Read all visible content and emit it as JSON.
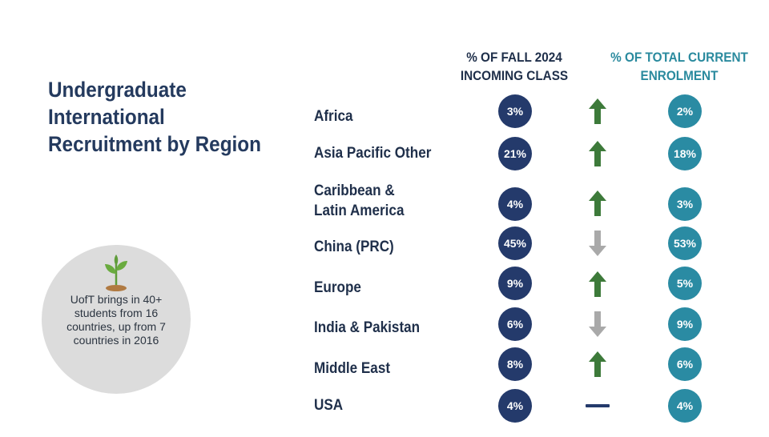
{
  "title": "Undergraduate International Recruitment by Region",
  "headers": {
    "fall_line1": "% OF FALL 2024",
    "fall_line2": "INCOMING CLASS",
    "total_line1": "% OF TOTAL CURRENT",
    "total_line2": "ENROLMENT"
  },
  "rows": [
    {
      "region_line1": "Africa",
      "region_line2": "",
      "fall": "3%",
      "trend": "up",
      "total": "2%"
    },
    {
      "region_line1": "Asia Pacific Other",
      "region_line2": "",
      "fall": "21%",
      "trend": "up",
      "total": "18%"
    },
    {
      "region_line1": "Caribbean &",
      "region_line2": "Latin America",
      "fall": "4%",
      "trend": "up",
      "total": "3%"
    },
    {
      "region_line1": "China (PRC)",
      "region_line2": "",
      "fall": "45%",
      "trend": "down",
      "total": "53%"
    },
    {
      "region_line1": "Europe",
      "region_line2": "",
      "fall": "9%",
      "trend": "up",
      "total": "5%"
    },
    {
      "region_line1": "India & Pakistan",
      "region_line2": "",
      "fall": "6%",
      "trend": "down",
      "total": "9%"
    },
    {
      "region_line1": "Middle East",
      "region_line2": "",
      "fall": "8%",
      "trend": "up",
      "total": "6%"
    },
    {
      "region_line1": "USA",
      "region_line2": "",
      "fall": "4%",
      "trend": "flat",
      "total": "4%"
    }
  ],
  "callout": {
    "icon": "sprout-icon",
    "text": "UofT brings in 40+ students from 16 countries, up from 7 countries in 2016"
  },
  "colors": {
    "title": "#243a5e",
    "fall_badge": "#243a6b",
    "total_badge": "#2a8ba3",
    "total_header": "#2a8a9e",
    "trend_up": "#3d7a3a",
    "trend_down": "#a9a9a9",
    "trend_flat": "#243a6b",
    "callout_bg": "#dcdcdc"
  }
}
